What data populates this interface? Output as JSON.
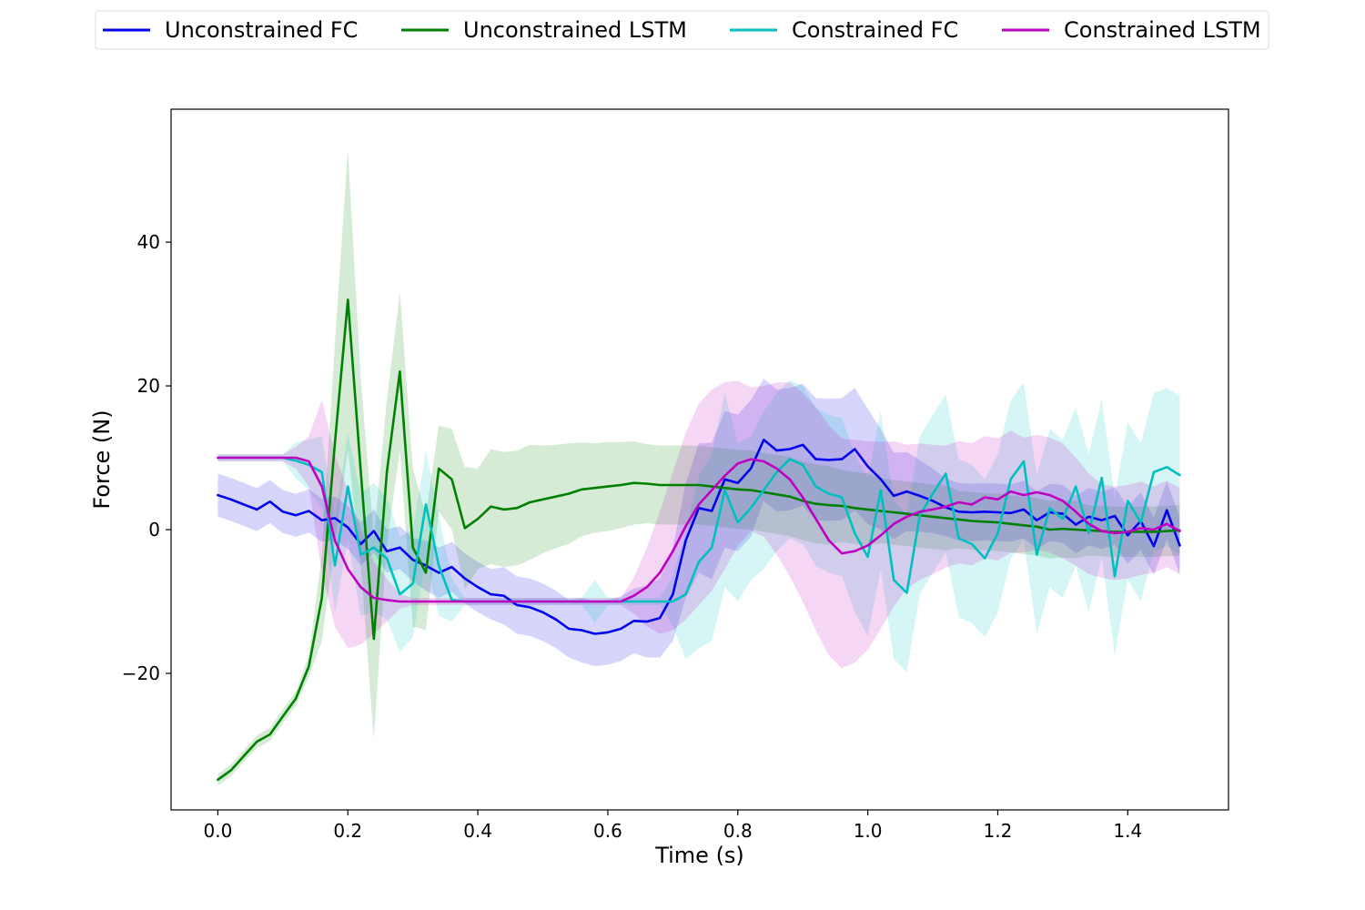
{
  "chart_data": {
    "type": "line",
    "xlabel": "Time (s)",
    "ylabel": "Force (N)",
    "xlim": [
      -0.072,
      1.555
    ],
    "ylim": [
      -39,
      58.5
    ],
    "xticks": [
      {
        "value": 0.0,
        "label": "0.0"
      },
      {
        "value": 0.2,
        "label": "0.2"
      },
      {
        "value": 0.4,
        "label": "0.4"
      },
      {
        "value": 0.6,
        "label": "0.6"
      },
      {
        "value": 0.8,
        "label": "0.8"
      },
      {
        "value": 1.0,
        "label": "1.0"
      },
      {
        "value": 1.2,
        "label": "1.2"
      },
      {
        "value": 1.4,
        "label": "1.4"
      }
    ],
    "yticks": [
      {
        "value": -20,
        "label": "−20"
      },
      {
        "value": 0,
        "label": "0"
      },
      {
        "value": 20,
        "label": "20"
      },
      {
        "value": 40,
        "label": "40"
      }
    ],
    "grid": false,
    "legend_position": "top",
    "series": [
      {
        "name": "Unconstrained FC",
        "color": "#0000ee",
        "x": [
          0.0,
          0.02,
          0.04,
          0.06,
          0.08,
          0.1,
          0.12,
          0.14,
          0.16,
          0.18,
          0.2,
          0.22,
          0.24,
          0.26,
          0.28,
          0.3,
          0.32,
          0.34,
          0.36,
          0.38,
          0.4,
          0.42,
          0.44,
          0.46,
          0.48,
          0.5,
          0.52,
          0.54,
          0.56,
          0.58,
          0.6,
          0.62,
          0.64,
          0.66,
          0.68,
          0.7,
          0.72,
          0.74,
          0.76,
          0.78,
          0.8,
          0.82,
          0.84,
          0.86,
          0.88,
          0.9,
          0.92,
          0.94,
          0.96,
          0.98,
          1.0,
          1.02,
          1.04,
          1.06,
          1.08,
          1.1,
          1.12,
          1.14,
          1.16,
          1.18,
          1.2,
          1.22,
          1.24,
          1.26,
          1.28,
          1.3,
          1.32,
          1.34,
          1.36,
          1.38,
          1.4,
          1.42,
          1.44,
          1.46,
          1.48
        ],
        "y": [
          4.8,
          4.2,
          3.5,
          2.8,
          3.9,
          2.5,
          2.0,
          2.6,
          1.3,
          1.6,
          0.3,
          -2.0,
          -0.2,
          -3.0,
          -2.5,
          -4.2,
          -5.0,
          -6.0,
          -5.2,
          -6.8,
          -8.0,
          -9.0,
          -9.2,
          -10.5,
          -10.8,
          -11.5,
          -12.5,
          -13.8,
          -14.0,
          -14.5,
          -14.3,
          -13.8,
          -12.7,
          -12.8,
          -12.3,
          -9.0,
          -1.5,
          3.0,
          2.6,
          7.0,
          6.5,
          8.5,
          12.5,
          11.0,
          11.2,
          11.8,
          9.8,
          9.7,
          9.8,
          11.2,
          8.8,
          7.0,
          4.7,
          5.3,
          4.7,
          4.0,
          3.1,
          2.5,
          2.4,
          2.5,
          2.4,
          2.3,
          2.8,
          1.3,
          2.4,
          2.2,
          0.7,
          1.8,
          1.3,
          1.9,
          -0.8,
          1.2,
          -2.3,
          2.7,
          -2.2
        ],
        "band": [
          3.0,
          3.0,
          3.0,
          3.0,
          3.0,
          3.0,
          3.0,
          3.0,
          3.0,
          3.0,
          3.0,
          3.0,
          3.0,
          3.0,
          3.0,
          3.0,
          3.5,
          3.5,
          3.5,
          3.5,
          3.5,
          3.5,
          4.0,
          4.0,
          4.0,
          4.0,
          4.0,
          4.0,
          4.5,
          4.5,
          4.5,
          4.5,
          4.5,
          5.0,
          5.5,
          6.5,
          8.0,
          9.0,
          9.5,
          9.5,
          9.5,
          9.5,
          8.5,
          8.5,
          8.5,
          8.5,
          8.5,
          8.5,
          8.5,
          8.5,
          8.0,
          7.0,
          6.0,
          5.5,
          5.0,
          4.5,
          4.0,
          4.0,
          4.0,
          4.0,
          4.0,
          4.0,
          4.0,
          4.0,
          4.0,
          4.0,
          4.0,
          4.0,
          4.0,
          4.0,
          4.0,
          4.0,
          4.0,
          4.0,
          4.0
        ]
      },
      {
        "name": "Unconstrained LSTM",
        "color": "#008000",
        "x": [
          0.0,
          0.02,
          0.04,
          0.06,
          0.08,
          0.1,
          0.12,
          0.14,
          0.16,
          0.18,
          0.2,
          0.22,
          0.24,
          0.26,
          0.28,
          0.3,
          0.32,
          0.34,
          0.36,
          0.38,
          0.4,
          0.42,
          0.44,
          0.46,
          0.48,
          0.5,
          0.52,
          0.54,
          0.56,
          0.58,
          0.6,
          0.62,
          0.64,
          0.66,
          0.68,
          0.7,
          0.72,
          0.74,
          0.76,
          0.78,
          0.8,
          0.82,
          0.84,
          0.86,
          0.88,
          0.9,
          0.92,
          0.94,
          0.96,
          0.98,
          1.0,
          1.02,
          1.04,
          1.06,
          1.08,
          1.1,
          1.12,
          1.14,
          1.16,
          1.18,
          1.2,
          1.22,
          1.24,
          1.26,
          1.28,
          1.3,
          1.32,
          1.34,
          1.36,
          1.38,
          1.4,
          1.42,
          1.44,
          1.46,
          1.48
        ],
        "y": [
          -34.8,
          -33.5,
          -31.5,
          -29.5,
          -28.5,
          -26.0,
          -23.5,
          -19.0,
          -9.5,
          12.0,
          32.0,
          8.0,
          -15.2,
          8.0,
          22.0,
          -2.5,
          -6.0,
          8.5,
          7.0,
          0.2,
          1.5,
          3.2,
          2.8,
          3.0,
          3.8,
          4.2,
          4.6,
          5.0,
          5.6,
          5.8,
          6.0,
          6.2,
          6.5,
          6.4,
          6.2,
          6.2,
          6.2,
          6.2,
          6.0,
          5.8,
          5.6,
          5.5,
          5.2,
          4.9,
          4.6,
          4.0,
          3.6,
          3.4,
          3.3,
          3.0,
          2.8,
          2.6,
          2.4,
          2.2,
          2.0,
          1.8,
          1.6,
          1.4,
          1.2,
          1.1,
          1.0,
          0.8,
          0.6,
          0.4,
          0.0,
          0.1,
          0.0,
          -0.1,
          -0.2,
          -0.3,
          -0.3,
          -0.3,
          -0.3,
          -0.2,
          -0.1
        ],
        "band": [
          0.8,
          0.8,
          0.8,
          0.9,
          0.9,
          1.0,
          1.0,
          1.5,
          6.0,
          14.0,
          21.0,
          13.0,
          14.0,
          10.0,
          11.0,
          11.0,
          8.0,
          6.0,
          7.0,
          8.5,
          7.0,
          8.0,
          8.0,
          8.0,
          8.0,
          7.5,
          7.2,
          7.0,
          6.5,
          6.2,
          6.2,
          6.0,
          5.8,
          5.5,
          5.5,
          5.5,
          5.5,
          5.5,
          5.5,
          5.5,
          5.5,
          5.5,
          5.5,
          5.5,
          5.5,
          5.5,
          5.5,
          5.5,
          5.0,
          5.0,
          5.0,
          4.5,
          4.5,
          4.5,
          4.5,
          4.5,
          4.5,
          4.0,
          4.0,
          4.0,
          4.0,
          4.0,
          4.0,
          4.0,
          4.0,
          4.0,
          4.0,
          3.5,
          3.5,
          3.5,
          3.5,
          3.5,
          3.5,
          3.5,
          3.5
        ]
      },
      {
        "name": "Constrained FC",
        "color": "#00bfbf",
        "x": [
          0.0,
          0.02,
          0.04,
          0.06,
          0.08,
          0.1,
          0.12,
          0.14,
          0.16,
          0.18,
          0.2,
          0.22,
          0.24,
          0.26,
          0.28,
          0.3,
          0.32,
          0.34,
          0.36,
          0.38,
          0.4,
          0.42,
          0.44,
          0.46,
          0.48,
          0.5,
          0.52,
          0.54,
          0.56,
          0.58,
          0.6,
          0.62,
          0.64,
          0.66,
          0.68,
          0.7,
          0.72,
          0.74,
          0.76,
          0.78,
          0.8,
          0.82,
          0.84,
          0.86,
          0.88,
          0.9,
          0.92,
          0.94,
          0.96,
          0.98,
          1.0,
          1.02,
          1.04,
          1.06,
          1.08,
          1.1,
          1.12,
          1.14,
          1.16,
          1.18,
          1.2,
          1.22,
          1.24,
          1.26,
          1.28,
          1.3,
          1.32,
          1.34,
          1.36,
          1.38,
          1.4,
          1.42,
          1.44,
          1.46,
          1.48
        ],
        "y": [
          10.0,
          10.0,
          10.0,
          10.0,
          10.0,
          10.0,
          9.6,
          9.0,
          8.0,
          -5.0,
          6.0,
          -3.5,
          -2.5,
          -4.0,
          -9.0,
          -7.5,
          3.5,
          -5.0,
          -9.8,
          -10.0,
          -10.0,
          -10.0,
          -10.0,
          -10.0,
          -10.0,
          -10.0,
          -10.0,
          -10.0,
          -10.0,
          -10.0,
          -10.0,
          -10.0,
          -10.0,
          -10.0,
          -10.0,
          -10.0,
          -9.0,
          -4.5,
          -2.5,
          5.5,
          1.0,
          3.0,
          5.5,
          8.0,
          9.8,
          9.0,
          6.0,
          5.0,
          4.5,
          -0.5,
          -3.8,
          5.5,
          -7.0,
          -8.8,
          2.0,
          5.0,
          7.8,
          -1.2,
          -2.0,
          -4.0,
          -0.5,
          7.0,
          9.5,
          -3.5,
          3.0,
          1.5,
          6.0,
          -0.5,
          7.2,
          -6.5,
          4.0,
          1.0,
          8.0,
          8.7,
          7.6
        ],
        "band": [
          0.5,
          0.5,
          0.5,
          0.5,
          0.5,
          0.5,
          2.5,
          3.5,
          5.0,
          6.5,
          7.5,
          8.5,
          9.0,
          8.5,
          8.0,
          7.5,
          7.5,
          7.0,
          3.0,
          0.5,
          0.5,
          0.5,
          0.5,
          0.5,
          0.5,
          0.5,
          0.5,
          0.5,
          0.5,
          3.0,
          0.5,
          0.5,
          0.5,
          0.5,
          0.5,
          3.5,
          9.0,
          12.0,
          13.0,
          13.5,
          11.0,
          10.0,
          11.0,
          11.0,
          11.0,
          11.0,
          11.0,
          11.0,
          11.0,
          11.0,
          11.0,
          11.0,
          11.0,
          11.0,
          11.0,
          11.0,
          11.0,
          11.0,
          11.0,
          11.0,
          11.0,
          11.0,
          11.0,
          11.0,
          11.0,
          11.0,
          11.0,
          11.0,
          11.0,
          11.0,
          11.0,
          11.0,
          11.0,
          11.0,
          11.0
        ]
      },
      {
        "name": "Constrained LSTM",
        "color": "#bf00bf",
        "x": [
          0.0,
          0.02,
          0.04,
          0.06,
          0.08,
          0.1,
          0.12,
          0.14,
          0.16,
          0.18,
          0.2,
          0.22,
          0.24,
          0.26,
          0.28,
          0.3,
          0.32,
          0.34,
          0.36,
          0.38,
          0.4,
          0.42,
          0.44,
          0.46,
          0.48,
          0.5,
          0.52,
          0.54,
          0.56,
          0.58,
          0.6,
          0.62,
          0.64,
          0.66,
          0.68,
          0.7,
          0.72,
          0.74,
          0.76,
          0.78,
          0.8,
          0.82,
          0.84,
          0.86,
          0.88,
          0.9,
          0.92,
          0.94,
          0.96,
          0.98,
          1.0,
          1.02,
          1.04,
          1.06,
          1.08,
          1.1,
          1.12,
          1.14,
          1.16,
          1.18,
          1.2,
          1.22,
          1.24,
          1.26,
          1.28,
          1.3,
          1.32,
          1.34,
          1.36,
          1.38,
          1.4,
          1.42,
          1.44,
          1.46,
          1.48
        ],
        "y": [
          10.0,
          10.0,
          10.0,
          10.0,
          10.0,
          10.0,
          10.0,
          9.5,
          6.0,
          -1.5,
          -5.5,
          -8.0,
          -9.5,
          -9.8,
          -10.0,
          -10.0,
          -10.0,
          -10.0,
          -10.0,
          -10.0,
          -10.0,
          -10.0,
          -10.0,
          -10.0,
          -10.0,
          -10.0,
          -10.0,
          -10.0,
          -10.0,
          -10.0,
          -10.0,
          -10.0,
          -9.2,
          -8.0,
          -6.0,
          -3.0,
          0.5,
          3.5,
          5.5,
          7.5,
          9.2,
          9.8,
          9.5,
          8.5,
          7.0,
          4.5,
          1.5,
          -1.5,
          -3.3,
          -3.0,
          -2.2,
          -0.8,
          0.8,
          1.8,
          2.5,
          2.8,
          3.2,
          3.8,
          3.5,
          4.5,
          4.2,
          5.3,
          4.8,
          5.2,
          4.8,
          4.0,
          2.5,
          0.8,
          -0.2,
          -0.5,
          -0.3,
          0.2,
          0.0,
          0.8,
          -0.2
        ],
        "band": [
          0.5,
          0.5,
          0.5,
          0.5,
          0.5,
          0.5,
          1.5,
          3.5,
          12.0,
          12.0,
          11.0,
          8.0,
          5.0,
          3.0,
          1.0,
          0.5,
          0.5,
          0.5,
          0.5,
          0.5,
          0.5,
          0.5,
          0.5,
          0.5,
          0.5,
          0.5,
          0.5,
          0.5,
          0.5,
          0.5,
          0.5,
          0.5,
          2.5,
          5.5,
          8.5,
          11.0,
          13.0,
          14.0,
          14.0,
          13.0,
          11.5,
          10.0,
          10.5,
          12.0,
          13.5,
          14.5,
          15.5,
          16.0,
          16.0,
          15.5,
          14.5,
          13.0,
          11.5,
          10.0,
          9.5,
          9.0,
          8.5,
          8.5,
          8.5,
          8.5,
          8.5,
          8.5,
          8.0,
          8.0,
          8.0,
          8.0,
          7.5,
          7.0,
          6.5,
          6.5,
          6.5,
          6.5,
          6.0,
          6.0,
          6.0
        ]
      }
    ]
  }
}
